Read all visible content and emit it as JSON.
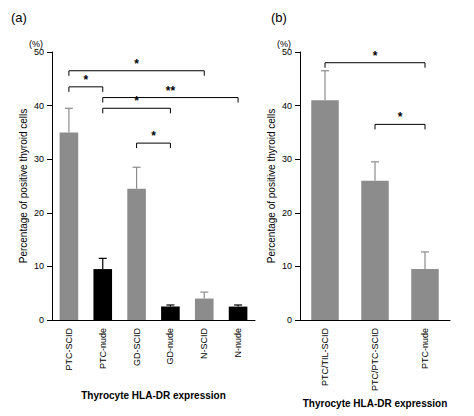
{
  "chart_data": [
    {
      "type": "bar",
      "title": "(a)",
      "y_unit": "(%)",
      "ylabel": "Percentage of positive thyroid cells",
      "xlabel": "Thyrocyte HLA-DR expression",
      "categories": [
        "PTC-SCID",
        "PTC-nude",
        "GD-SCID",
        "GD-nude",
        "N-SCID",
        "N-nude"
      ],
      "values": [
        35,
        9.5,
        24.5,
        2.5,
        4,
        2.5
      ],
      "errors": [
        4.5,
        2,
        4,
        0.3,
        1.2,
        0.3
      ],
      "colors": [
        "#8c8c8c",
        "#000000",
        "#8c8c8c",
        "#000000",
        "#8c8c8c",
        "#000000"
      ],
      "ylim": [
        0,
        50
      ],
      "yticks": [
        0,
        10,
        20,
        30,
        40,
        50
      ],
      "grid": false,
      "annotations": [
        {
          "text": "*",
          "from": "PTC-SCID",
          "to": "N-SCID",
          "y": 46.5
        },
        {
          "text": "*",
          "from": "PTC-SCID",
          "to": "PTC-nude",
          "y": 43.5
        },
        {
          "text": "**",
          "from": "PTC-nude",
          "to": "N-nude",
          "y": 41.5
        },
        {
          "text": "*",
          "from": "PTC-nude",
          "to": "GD-nude",
          "y": 39.5
        },
        {
          "text": "*",
          "from": "GD-SCID",
          "to": "GD-nude",
          "y": 33
        }
      ]
    },
    {
      "type": "bar",
      "title": "(b)",
      "y_unit": "(%)",
      "ylabel": "Percentage of positive thyroid cells",
      "xlabel": "Thyrocyte HLA-DR expression",
      "categories": [
        "PTC/TIL-SCID",
        "PTC/PTC-SCID",
        "PTC-nude"
      ],
      "values": [
        41,
        26,
        9.5
      ],
      "errors": [
        5.5,
        3.5,
        3.2
      ],
      "color": "#8c8c8c",
      "ylim": [
        0,
        50
      ],
      "yticks": [
        0,
        10,
        20,
        30,
        40,
        50
      ],
      "grid": false,
      "annotations": [
        {
          "text": "*",
          "from": "PTC/TIL-SCID",
          "to": "PTC-nude",
          "y": 48
        },
        {
          "text": "*",
          "from": "PTC/PTC-SCID",
          "to": "PTC-nude",
          "y": 36.5
        }
      ]
    }
  ]
}
